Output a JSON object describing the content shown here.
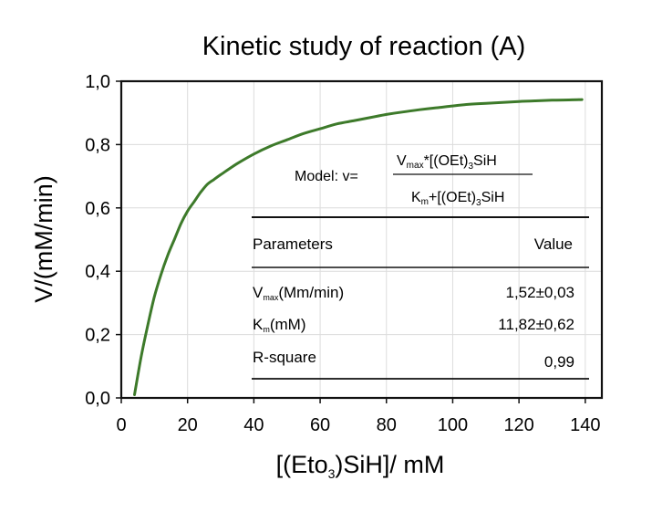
{
  "chart_data": {
    "type": "line",
    "title": "Kinetic study of reaction (A)",
    "xlabel": {
      "prefix": "[(Eto",
      "sub": "3",
      "suffix": ")SiH]/ mM"
    },
    "ylabel": "V/(mM/min)",
    "xlim": [
      0,
      145
    ],
    "ylim": [
      0,
      1.0
    ],
    "xticks": [
      {
        "value": 0,
        "label": "0"
      },
      {
        "value": 20,
        "label": "20"
      },
      {
        "value": 40,
        "label": "40"
      },
      {
        "value": 60,
        "label": "60"
      },
      {
        "value": 80,
        "label": "80"
      },
      {
        "value": 100,
        "label": "100"
      },
      {
        "value": 120,
        "label": "120"
      },
      {
        "value": 140,
        "label": "140"
      }
    ],
    "yticks": [
      {
        "value": 0.0,
        "label": "0,0"
      },
      {
        "value": 0.2,
        "label": "0,2"
      },
      {
        "value": 0.4,
        "label": "0,4"
      },
      {
        "value": 0.6,
        "label": "0,6"
      },
      {
        "value": 0.8,
        "label": "0,8"
      },
      {
        "value": 1.0,
        "label": "1,0"
      }
    ],
    "grid": true,
    "line_color": "#3d7a2a",
    "series": [
      {
        "x": [
          4,
          6,
          8,
          10,
          12,
          14,
          16,
          18,
          20,
          22,
          24,
          26,
          28,
          30,
          35,
          40,
          45,
          50,
          55,
          60,
          65,
          70,
          75,
          80,
          85,
          90,
          95,
          100,
          105,
          110,
          115,
          120,
          125,
          130,
          135,
          139
        ],
        "values": [
          0.01,
          0.13,
          0.23,
          0.32,
          0.39,
          0.45,
          0.5,
          0.55,
          0.59,
          0.62,
          0.65,
          0.675,
          0.69,
          0.705,
          0.74,
          0.77,
          0.795,
          0.815,
          0.835,
          0.85,
          0.865,
          0.875,
          0.885,
          0.895,
          0.903,
          0.91,
          0.916,
          0.922,
          0.927,
          0.93,
          0.933,
          0.936,
          0.938,
          0.94,
          0.941,
          0.942
        ]
      }
    ],
    "annotation": {
      "model": {
        "prefix": "Model: v=",
        "numerator": {
          "v": "V",
          "v_sub": "max",
          "rest1": "*[(OEt)",
          "sub3": "3",
          "rest2": "SiH"
        },
        "denominator": {
          "k": "K",
          "k_sub": "m",
          "rest1": "+[(OEt)",
          "sub3": "3",
          "rest2": "SiH"
        }
      },
      "table": {
        "header": [
          "Parameters",
          "Value"
        ],
        "rows": [
          {
            "param": "V",
            "param_sub": "max",
            "param_suffix": "(Mm/min)",
            "value": "1,52±0,03"
          },
          {
            "param": "K",
            "param_sub": "m",
            "param_suffix": "(mM)",
            "value": "11,82±0,62"
          },
          {
            "param": "R-square",
            "param_sub": "",
            "param_suffix": "",
            "value": "0,99"
          }
        ]
      }
    }
  }
}
